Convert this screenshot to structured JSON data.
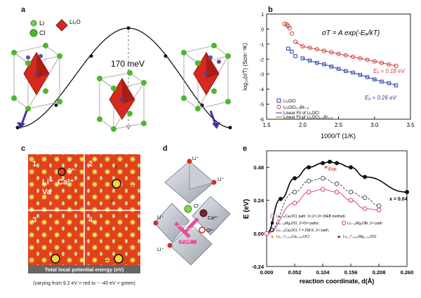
{
  "panels": {
    "a": {
      "label": "a",
      "legend": [
        "Li",
        "Cl",
        "Li₆O"
      ],
      "energy_label": "170 meV"
    },
    "b": {
      "label": "b",
      "equation": "σT = A exp(-Eₐ/kT)",
      "ylabel": "log₁₀(σT) (Scm⁻¹K)",
      "xlabel": "1000/T (1/K)",
      "xticks": [
        "1.5",
        "2.0",
        "2.5",
        "3.0",
        "3.5"
      ],
      "yticks": [
        "1",
        "0",
        "-1",
        "-2",
        "-3",
        "-4",
        "-5",
        "-6"
      ],
      "legend": [
        "Li₃OCl",
        "Li₃OCl₀.₅Br₀.₅",
        "Linear Fit of Li₃OCl",
        "Linear Fit of Li₃OCl₀.₅Br₀.₅"
      ],
      "ea_red": "Eₐ = 0.18 eV",
      "ea_blue": "Eₐ = 0.26 eV"
    },
    "c": {
      "label": "c",
      "quadrants": [
        "1",
        "2",
        "3",
        "4"
      ],
      "species": [
        "Li⁺",
        "Ca²⁺",
        "Va",
        "O²⁻"
      ],
      "bar_text": "Total local potential energy (eV)",
      "caption": "(varying from 9.2 eV = red to ~ -40 eV = green)"
    },
    "d": {
      "label": "d",
      "ions": [
        "Li⁺",
        "Li⁺",
        "Cl⁻",
        "Ca²⁺",
        "O²⁻",
        "Li⁺",
        "Li⁺"
      ],
      "path_labels": [
        "1ˢᵗ path",
        "2ⁿᵈ path",
        "3ʳᵈ path"
      ]
    },
    "e": {
      "label": "e",
      "ylabel": "E (eV)",
      "xlabel": "reaction coordinate, d(Å)",
      "xticks": [
        "0.000",
        "0.052",
        "0.104",
        "0.156",
        "0.208",
        "0.260"
      ],
      "yticks": [
        "0.48",
        "0.24",
        "0.00",
        "-0.24"
      ],
      "x_note": "x = 0.04",
      "exp_label": "Exp.",
      "legend": [
        "Li₃₋₂ₓCaₓOCl, path: 1ˢᵗ,2ⁿᵈ,3ʳᵈ (NEB method)",
        "Li₃₋₂ₓMgₓOCl, 2ⁿᵈ/3ʳᵈ paths;",
        "Li₃₋₂ₓMgₓOBr, 2ⁿᵈ path",
        "Li₃₋₂ₓCaₓOCl, T = 298 K, 2ⁿᵈ path;",
        "Li₃₋₂*₀.₀₀₅Ca₀.₀₀₅OCl",
        "Li₃₋₂*₀.₀₀₅Mg₀.₀₀₅OCl"
      ]
    }
  },
  "chart_data": [
    {
      "type": "scatter",
      "title": "σT = A exp(-Eₐ/kT)",
      "xlabel": "1000/T (1/K)",
      "ylabel": "log₁₀(σT) (Scm⁻¹K)",
      "xlim": [
        1.5,
        3.5
      ],
      "ylim": [
        -6,
        1
      ],
      "series": [
        {
          "name": "Li₃OCl₀.₅Br₀.₅",
          "color": "#d23b3b",
          "x": [
            1.75,
            1.78,
            1.8,
            1.82,
            1.85,
            1.9,
            2.0,
            2.1,
            2.2,
            2.3,
            2.4,
            2.5,
            2.6,
            2.7,
            2.8,
            2.9,
            3.0,
            3.1,
            3.2,
            3.3
          ],
          "y": [
            0.35,
            0.3,
            0.2,
            0.05,
            -0.3,
            -0.85,
            -1.15,
            -1.25,
            -1.35,
            -1.45,
            -1.55,
            -1.65,
            -1.75,
            -1.85,
            -1.95,
            -2.05,
            -2.15,
            -2.25,
            -2.35,
            -2.45
          ]
        },
        {
          "name": "Li₃OCl",
          "color": "#2b3fae",
          "x": [
            1.8,
            1.85,
            1.9,
            2.0,
            2.1,
            2.2,
            2.3,
            2.4,
            2.5,
            2.6,
            2.7,
            2.8,
            2.9,
            3.0,
            3.1,
            3.2,
            3.3
          ],
          "y": [
            -1.3,
            -1.5,
            -1.8,
            -1.95,
            -2.1,
            -2.25,
            -2.35,
            -2.5,
            -2.65,
            -2.8,
            -2.9,
            -3.05,
            -3.2,
            -3.35,
            -3.5,
            -3.6,
            -3.75
          ]
        }
      ]
    },
    {
      "type": "line",
      "xlabel": "reaction coordinate, d(Å)",
      "ylabel": "E (eV)",
      "xlim": [
        0,
        0.26
      ],
      "ylim": [
        -0.24,
        0.6
      ],
      "series": [
        {
          "name": "Li₃₋₂ₓCaₓOCl, path: 1ˢᵗ,2ⁿᵈ,3ʳᵈ (NEB method)",
          "color": "#000000",
          "x": [
            0.0,
            0.026,
            0.052,
            0.078,
            0.104,
            0.117,
            0.13,
            0.156,
            0.182,
            0.26
          ],
          "y": [
            0.0,
            0.25,
            0.4,
            0.48,
            0.51,
            0.52,
            0.51,
            0.48,
            0.41,
            0.3
          ]
        },
        {
          "name": "Li₃₋₂ₓCaₓOCl, T = 298 K, 2ⁿᵈ path;",
          "color": "#555555",
          "x": [
            0.0,
            0.052,
            0.078,
            0.104,
            0.13,
            0.156,
            0.182,
            0.208
          ],
          "y": [
            0.0,
            0.3,
            0.38,
            0.4,
            0.36,
            0.3,
            0.26,
            0.2
          ]
        },
        {
          "name": "Li₃₋₂ₓMgₓOBr, 2ⁿᵈ path",
          "color": "#e0538a",
          "x": [
            0.0,
            0.052,
            0.078,
            0.104,
            0.13,
            0.156,
            0.182,
            0.208
          ],
          "y": [
            0.0,
            0.22,
            0.3,
            0.32,
            0.3,
            0.24,
            0.18,
            0.17
          ]
        }
      ]
    }
  ]
}
